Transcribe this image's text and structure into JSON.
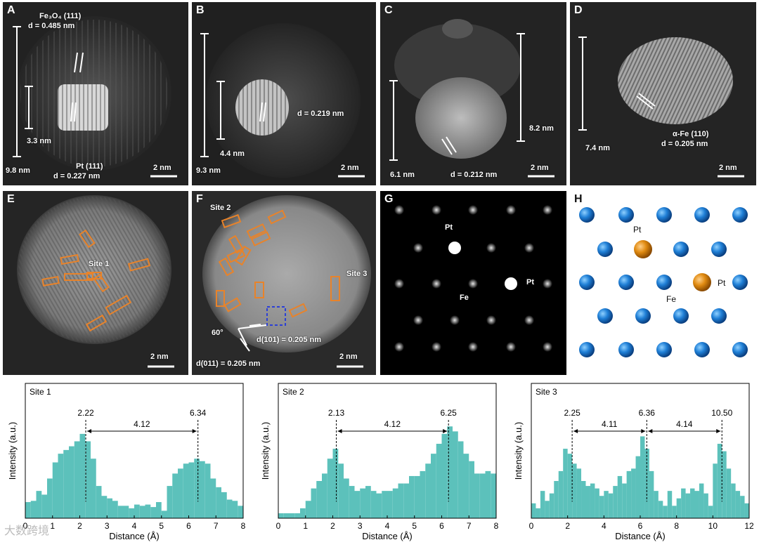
{
  "panels": {
    "A": {
      "label": "A",
      "formula": "Fe₃O₄ (111)",
      "d_top": "d = 0.485 nm",
      "s1": "3.3 nm",
      "s2": "9.8 nm",
      "pt": "Pt (111)",
      "d_pt": "d = 0.227 nm",
      "scale": "2 nm"
    },
    "B": {
      "label": "B",
      "d": "d = 0.219 nm",
      "s1": "4.4 nm",
      "s2": "9.3 nm",
      "scale": "2 nm"
    },
    "C": {
      "label": "C",
      "s1": "6.1 nm",
      "d": "d = 0.212 nm",
      "s2": "8.2 nm",
      "scale": "2 nm"
    },
    "D": {
      "label": "D",
      "s1": "7.4 nm",
      "phase": "α-Fe (110)",
      "d": "d = 0.205 nm",
      "scale": "2 nm"
    },
    "E": {
      "label": "E",
      "site": "Site 1",
      "scale": "2 nm"
    },
    "F": {
      "label": "F",
      "site2": "Site 2",
      "site3": "Site 3",
      "angle": "60°",
      "d1": "d(101) = 0.205 nm",
      "d2": "d(011) = 0.205 nm",
      "scale": "2 nm"
    },
    "G": {
      "label": "G",
      "pt1": "Pt",
      "pt2": "Pt",
      "fe": "Fe"
    },
    "H": {
      "label": "H",
      "pt1": "Pt",
      "pt2": "Pt",
      "fe": "Fe"
    }
  },
  "colors": {
    "fe_atom": "#1f7fd6",
    "pt_atom": "#e08a10",
    "bars": "#5cc1bb",
    "boxes": "#e8832a",
    "dashbox": "#2b3fd6"
  },
  "watermark": "大数跨境",
  "chart_data": [
    {
      "type": "bar",
      "title": "Site 1",
      "xlabel": "Distance (Å)",
      "ylabel": "Intensity (a.u.)",
      "xlim": [
        0,
        8
      ],
      "ylim": [
        0,
        1
      ],
      "xticks": [
        0,
        1,
        2,
        3,
        4,
        5,
        6,
        7,
        8
      ],
      "peaks": [
        2.22,
        6.34
      ],
      "peak_labels": [
        "2.22",
        "6.34"
      ],
      "spacings": [
        "4.12"
      ],
      "bin_width": 0.2,
      "x": [
        0.1,
        0.3,
        0.5,
        0.7,
        0.9,
        1.1,
        1.3,
        1.5,
        1.7,
        1.9,
        2.1,
        2.3,
        2.5,
        2.7,
        2.9,
        3.1,
        3.3,
        3.5,
        3.7,
        3.9,
        4.1,
        4.3,
        4.5,
        4.7,
        4.9,
        5.1,
        5.3,
        5.5,
        5.7,
        5.9,
        6.1,
        6.3,
        6.5,
        6.7,
        6.9,
        7.1,
        7.3,
        7.5,
        7.7,
        7.9
      ],
      "values": [
        0.13,
        0.14,
        0.22,
        0.19,
        0.32,
        0.45,
        0.52,
        0.55,
        0.58,
        0.62,
        0.68,
        0.62,
        0.48,
        0.26,
        0.18,
        0.16,
        0.14,
        0.1,
        0.1,
        0.08,
        0.11,
        0.1,
        0.11,
        0.09,
        0.13,
        0.06,
        0.26,
        0.36,
        0.4,
        0.44,
        0.45,
        0.48,
        0.46,
        0.44,
        0.32,
        0.25,
        0.21,
        0.15,
        0.14,
        0.1
      ]
    },
    {
      "type": "bar",
      "title": "Site 2",
      "xlabel": "Distance (Å)",
      "ylabel": "Intensity (a.u.)",
      "xlim": [
        0,
        8
      ],
      "ylim": [
        0,
        1
      ],
      "xticks": [
        0,
        1,
        2,
        3,
        4,
        5,
        6,
        7,
        8
      ],
      "peaks": [
        2.13,
        6.25
      ],
      "peak_labels": [
        "2.13",
        "6.25"
      ],
      "spacings": [
        "4.12"
      ],
      "bin_width": 0.2,
      "x": [
        0.1,
        0.3,
        0.5,
        0.7,
        0.9,
        1.1,
        1.3,
        1.5,
        1.7,
        1.9,
        2.1,
        2.3,
        2.5,
        2.7,
        2.9,
        3.1,
        3.3,
        3.5,
        3.7,
        3.9,
        4.1,
        4.3,
        4.5,
        4.7,
        4.9,
        5.1,
        5.3,
        5.5,
        5.7,
        5.9,
        6.1,
        6.3,
        6.5,
        6.7,
        6.9,
        7.1,
        7.3,
        7.5,
        7.7,
        7.9
      ],
      "values": [
        0.04,
        0.04,
        0.04,
        0.04,
        0.08,
        0.14,
        0.24,
        0.3,
        0.36,
        0.48,
        0.56,
        0.44,
        0.32,
        0.26,
        0.22,
        0.24,
        0.26,
        0.22,
        0.2,
        0.22,
        0.22,
        0.24,
        0.28,
        0.28,
        0.34,
        0.34,
        0.38,
        0.44,
        0.52,
        0.6,
        0.68,
        0.74,
        0.7,
        0.62,
        0.52,
        0.46,
        0.36,
        0.36,
        0.38,
        0.36
      ]
    },
    {
      "type": "bar",
      "title": "Site 3",
      "xlabel": "Distance (Å)",
      "ylabel": "Intensity (a.u.)",
      "xlim": [
        0,
        12
      ],
      "ylim": [
        0,
        1
      ],
      "xticks": [
        0,
        2,
        4,
        6,
        8,
        10,
        12
      ],
      "peaks": [
        2.25,
        6.36,
        10.5
      ],
      "peak_labels": [
        "2.25",
        "6.36",
        "10.50"
      ],
      "spacings": [
        "4.11",
        "4.14"
      ],
      "bin_width": 0.25,
      "x": [
        0.125,
        0.375,
        0.625,
        0.875,
        1.125,
        1.375,
        1.625,
        1.875,
        2.125,
        2.375,
        2.625,
        2.875,
        3.125,
        3.375,
        3.625,
        3.875,
        4.125,
        4.375,
        4.625,
        4.875,
        5.125,
        5.375,
        5.625,
        5.875,
        6.125,
        6.375,
        6.625,
        6.875,
        7.125,
        7.375,
        7.625,
        7.875,
        8.125,
        8.375,
        8.625,
        8.875,
        9.125,
        9.375,
        9.625,
        9.875,
        10.125,
        10.375,
        10.625,
        10.875,
        11.125,
        11.375,
        11.625,
        11.875
      ],
      "values": [
        0.12,
        0.08,
        0.22,
        0.14,
        0.2,
        0.3,
        0.38,
        0.56,
        0.52,
        0.44,
        0.4,
        0.3,
        0.26,
        0.28,
        0.24,
        0.18,
        0.22,
        0.2,
        0.26,
        0.34,
        0.28,
        0.38,
        0.4,
        0.5,
        0.66,
        0.56,
        0.38,
        0.22,
        0.14,
        0.1,
        0.22,
        0.1,
        0.16,
        0.24,
        0.2,
        0.24,
        0.22,
        0.28,
        0.2,
        0.1,
        0.44,
        0.6,
        0.54,
        0.4,
        0.28,
        0.22,
        0.18,
        0.12
      ]
    }
  ]
}
